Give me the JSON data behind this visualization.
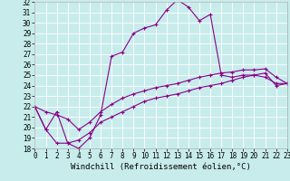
{
  "title": "",
  "xlabel": "Windchill (Refroidissement éolien,°C)",
  "bg_color": "#c8ecec",
  "grid_color": "#ffffff",
  "line_color": "#880088",
  "ylim": [
    18,
    32
  ],
  "xlim": [
    0,
    23
  ],
  "yticks": [
    18,
    19,
    20,
    21,
    22,
    23,
    24,
    25,
    26,
    27,
    28,
    29,
    30,
    31,
    32
  ],
  "xticks": [
    0,
    1,
    2,
    3,
    4,
    5,
    6,
    7,
    8,
    9,
    10,
    11,
    12,
    13,
    14,
    15,
    16,
    17,
    18,
    19,
    20,
    21,
    22,
    23
  ],
  "line1_x": [
    0,
    1,
    2,
    3,
    4,
    5,
    6,
    7,
    8,
    9,
    10,
    11,
    12,
    13,
    14,
    15,
    16,
    17,
    18,
    19,
    20,
    21,
    22,
    23
  ],
  "line1_y": [
    22.0,
    19.8,
    21.5,
    18.5,
    18.0,
    19.0,
    21.2,
    26.8,
    27.2,
    29.0,
    29.5,
    29.8,
    31.2,
    32.2,
    31.5,
    30.2,
    30.8,
    25.0,
    24.8,
    25.0,
    25.0,
    24.8,
    24.2,
    24.2
  ],
  "line2_x": [
    0,
    1,
    2,
    3,
    4,
    5,
    6,
    7,
    8,
    9,
    10,
    11,
    12,
    13,
    14,
    15,
    16,
    17,
    18,
    19,
    20,
    21,
    22,
    23
  ],
  "line2_y": [
    22.0,
    21.5,
    21.2,
    20.8,
    19.8,
    20.5,
    21.5,
    22.2,
    22.8,
    23.2,
    23.5,
    23.8,
    24.0,
    24.2,
    24.5,
    24.8,
    25.0,
    25.2,
    25.3,
    25.5,
    25.5,
    25.6,
    24.8,
    24.2
  ],
  "line3_x": [
    0,
    1,
    2,
    3,
    4,
    5,
    6,
    7,
    8,
    9,
    10,
    11,
    12,
    13,
    14,
    15,
    16,
    17,
    18,
    19,
    20,
    21,
    22,
    23
  ],
  "line3_y": [
    22.0,
    19.8,
    18.5,
    18.5,
    18.8,
    19.5,
    20.5,
    21.0,
    21.5,
    22.0,
    22.5,
    22.8,
    23.0,
    23.2,
    23.5,
    23.8,
    24.0,
    24.2,
    24.5,
    24.8,
    25.0,
    25.2,
    24.0,
    24.2
  ],
  "marker": "+",
  "markersize": 3,
  "linewidth": 0.8,
  "tick_fontsize": 5.5,
  "xlabel_fontsize": 6.5
}
